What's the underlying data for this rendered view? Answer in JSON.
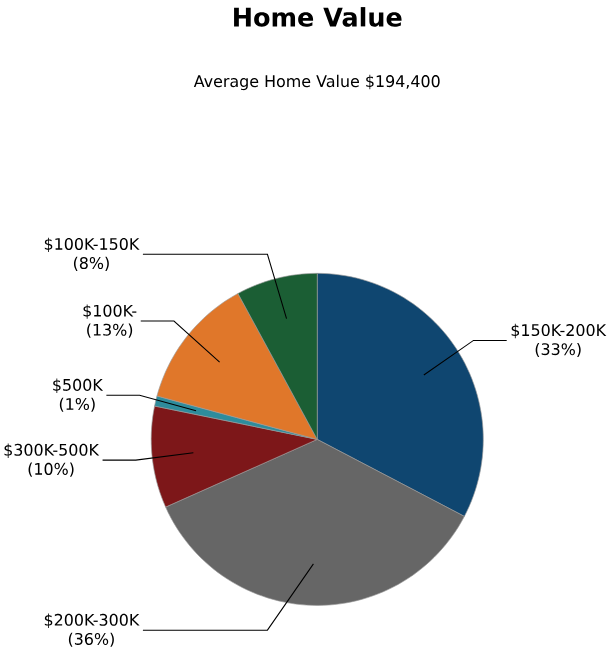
{
  "chart_data": {
    "type": "pie",
    "title": "Home Value",
    "subtitle": "Average Home Value  $194,400",
    "categories": [
      "$150K-200K",
      "$200K-300K",
      "$300K-500K",
      "$500K",
      "$100K-",
      "$100K-150K"
    ],
    "values": [
      33,
      36,
      10,
      1,
      13,
      8
    ],
    "value_labels": [
      "(33%)",
      "(36%)",
      "(10%)",
      "(1%)",
      "(13%)",
      "(8%)"
    ],
    "colors": [
      "#0f4670",
      "#666666",
      "#7d1719",
      "#2e8c9c",
      "#e0772a",
      "#1b5e34"
    ]
  }
}
